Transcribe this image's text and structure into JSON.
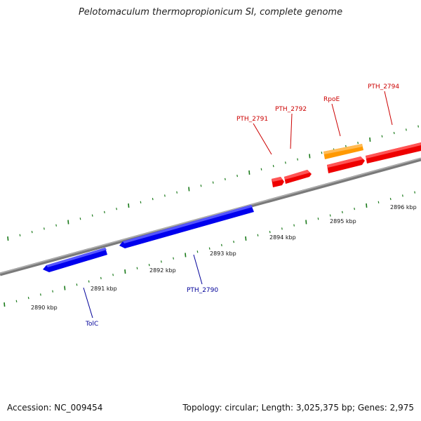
{
  "title": "Pelotomaculum thermopropionicum SI, complete genome",
  "accession": "Accession: NC_009454",
  "summary": "Topology: circular; Length: 3,025,375 bp; Genes: 2,975",
  "colors": {
    "backbone": "#8a8a8a",
    "tick": "#1a7a1a",
    "forward_gene": "#ee0000",
    "reverse_gene": "#0000ee",
    "rna_gene": "#ff9900",
    "forward_label": "#cc0000",
    "reverse_label": "#000099"
  },
  "scale": {
    "unit": "kbp",
    "labels": [
      "2890 kbp",
      "2891 kbp",
      "2892 kbp",
      "2893 kbp",
      "2894 kbp",
      "2895 kbp",
      "2896 kbp"
    ]
  },
  "genes": [
    {
      "label": "PTH_2791",
      "strand": "forward"
    },
    {
      "label": "PTH_2792",
      "strand": "forward"
    },
    {
      "label": "RpoE",
      "strand": "forward"
    },
    {
      "label": "PTH_2794",
      "strand": "forward"
    },
    {
      "label": "PTH_2790",
      "strand": "reverse"
    },
    {
      "label": "TolC",
      "strand": "reverse"
    }
  ]
}
